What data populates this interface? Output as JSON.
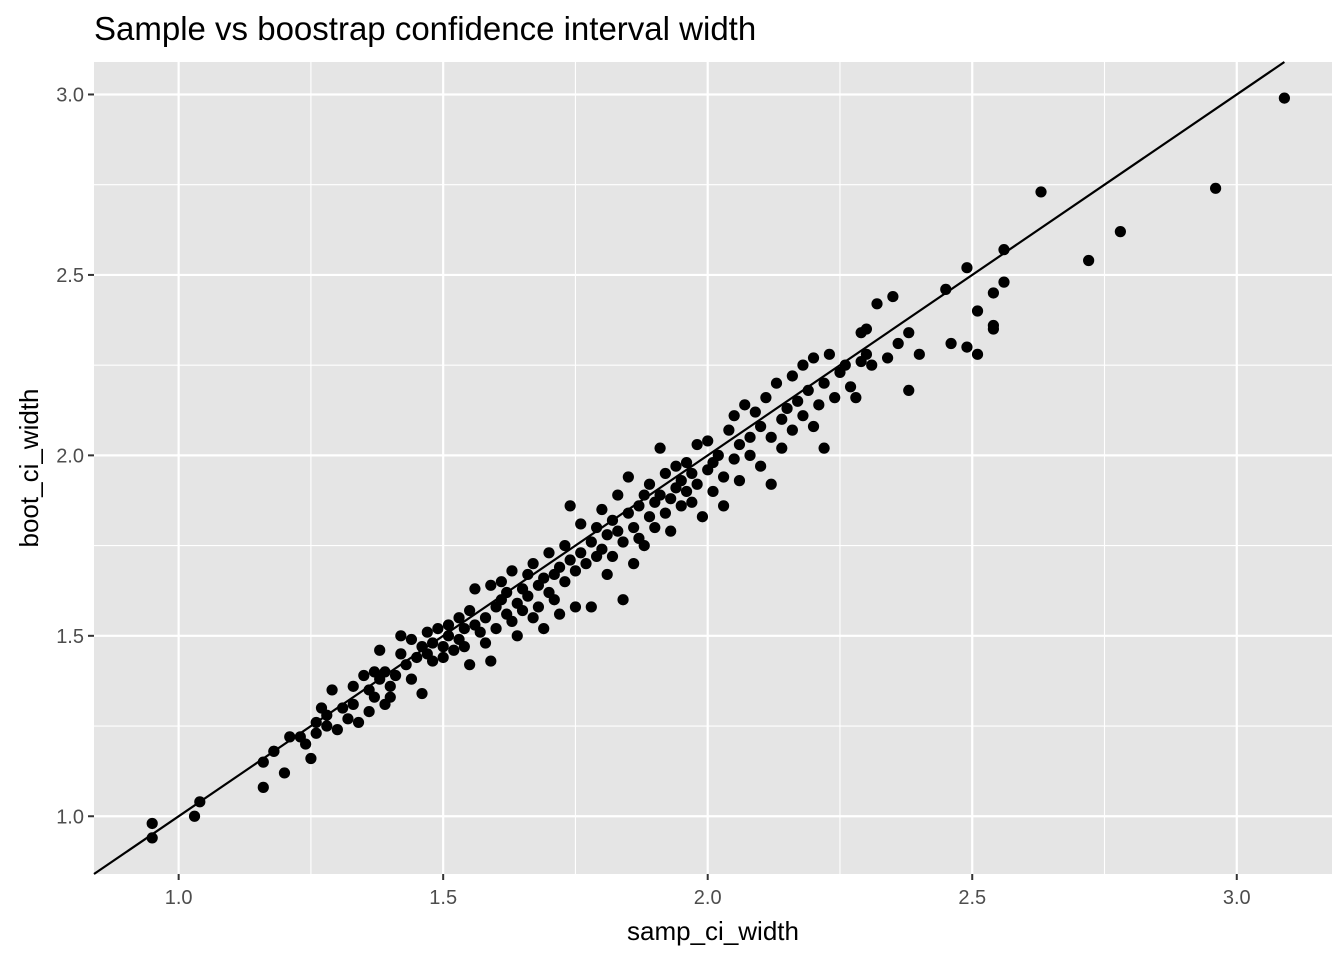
{
  "chart_data": {
    "type": "scatter",
    "title": "Sample vs boostrap confidence interval width",
    "xlabel": "samp_ci_width",
    "ylabel": "boot_ci_width",
    "xlim": [
      0.84,
      3.18
    ],
    "ylim": [
      0.84,
      3.09
    ],
    "x_ticks": [
      1.0,
      1.5,
      2.0,
      2.5,
      3.0
    ],
    "y_ticks": [
      1.0,
      1.5,
      2.0,
      2.5,
      3.0
    ],
    "x_tick_labels": [
      "1.0",
      "1.5",
      "2.0",
      "2.5",
      "3.0"
    ],
    "y_tick_labels": [
      "1.0",
      "1.5",
      "2.0",
      "2.5",
      "3.0"
    ],
    "grid": true,
    "legend": "none",
    "colors": {
      "panel": "#e5e5e5",
      "grid": "#ffffff",
      "point": "#000000",
      "line": "#000000",
      "tick": "#4d4d4d"
    },
    "reference_line": {
      "type": "identity",
      "slope": 1,
      "intercept": 0
    },
    "series": [
      {
        "points": [
          [
            0.95,
            0.98
          ],
          [
            0.95,
            0.94
          ],
          [
            1.03,
            1.0
          ],
          [
            1.04,
            1.04
          ],
          [
            1.16,
            1.15
          ],
          [
            1.16,
            1.08
          ],
          [
            1.18,
            1.18
          ],
          [
            1.18,
            1.18
          ],
          [
            1.2,
            1.12
          ],
          [
            1.21,
            1.22
          ],
          [
            1.23,
            1.22
          ],
          [
            1.24,
            1.2
          ],
          [
            1.25,
            1.16
          ],
          [
            1.26,
            1.26
          ],
          [
            1.26,
            1.23
          ],
          [
            1.27,
            1.3
          ],
          [
            1.28,
            1.28
          ],
          [
            1.28,
            1.25
          ],
          [
            1.29,
            1.35
          ],
          [
            1.3,
            1.24
          ],
          [
            1.31,
            1.3
          ],
          [
            1.32,
            1.27
          ],
          [
            1.33,
            1.36
          ],
          [
            1.33,
            1.31
          ],
          [
            1.34,
            1.26
          ],
          [
            1.35,
            1.39
          ],
          [
            1.36,
            1.35
          ],
          [
            1.36,
            1.29
          ],
          [
            1.37,
            1.4
          ],
          [
            1.37,
            1.33
          ],
          [
            1.38,
            1.38
          ],
          [
            1.38,
            1.46
          ],
          [
            1.39,
            1.4
          ],
          [
            1.39,
            1.31
          ],
          [
            1.4,
            1.36
          ],
          [
            1.4,
            1.33
          ],
          [
            1.41,
            1.39
          ],
          [
            1.42,
            1.45
          ],
          [
            1.42,
            1.5
          ],
          [
            1.43,
            1.42
          ],
          [
            1.44,
            1.49
          ],
          [
            1.44,
            1.38
          ],
          [
            1.45,
            1.44
          ],
          [
            1.46,
            1.47
          ],
          [
            1.46,
            1.34
          ],
          [
            1.47,
            1.51
          ],
          [
            1.47,
            1.45
          ],
          [
            1.48,
            1.48
          ],
          [
            1.48,
            1.43
          ],
          [
            1.49,
            1.52
          ],
          [
            1.5,
            1.47
          ],
          [
            1.5,
            1.44
          ],
          [
            1.51,
            1.5
          ],
          [
            1.51,
            1.53
          ],
          [
            1.52,
            1.46
          ],
          [
            1.53,
            1.49
          ],
          [
            1.53,
            1.55
          ],
          [
            1.54,
            1.52
          ],
          [
            1.54,
            1.47
          ],
          [
            1.55,
            1.57
          ],
          [
            1.55,
            1.42
          ],
          [
            1.56,
            1.53
          ],
          [
            1.56,
            1.63
          ],
          [
            1.57,
            1.51
          ],
          [
            1.58,
            1.55
          ],
          [
            1.58,
            1.48
          ],
          [
            1.59,
            1.64
          ],
          [
            1.59,
            1.43
          ],
          [
            1.6,
            1.58
          ],
          [
            1.6,
            1.52
          ],
          [
            1.61,
            1.6
          ],
          [
            1.61,
            1.65
          ],
          [
            1.62,
            1.56
          ],
          [
            1.62,
            1.62
          ],
          [
            1.63,
            1.54
          ],
          [
            1.63,
            1.68
          ],
          [
            1.64,
            1.59
          ],
          [
            1.64,
            1.5
          ],
          [
            1.65,
            1.63
          ],
          [
            1.65,
            1.57
          ],
          [
            1.66,
            1.61
          ],
          [
            1.66,
            1.67
          ],
          [
            1.67,
            1.55
          ],
          [
            1.67,
            1.7
          ],
          [
            1.68,
            1.64
          ],
          [
            1.68,
            1.58
          ],
          [
            1.69,
            1.66
          ],
          [
            1.69,
            1.52
          ],
          [
            1.7,
            1.62
          ],
          [
            1.7,
            1.73
          ],
          [
            1.71,
            1.67
          ],
          [
            1.71,
            1.6
          ],
          [
            1.72,
            1.69
          ],
          [
            1.72,
            1.56
          ],
          [
            1.73,
            1.75
          ],
          [
            1.73,
            1.65
          ],
          [
            1.74,
            1.71
          ],
          [
            1.74,
            1.86
          ],
          [
            1.75,
            1.68
          ],
          [
            1.75,
            1.58
          ],
          [
            1.76,
            1.73
          ],
          [
            1.76,
            1.81
          ],
          [
            1.77,
            1.7
          ],
          [
            1.78,
            1.76
          ],
          [
            1.78,
            1.58
          ],
          [
            1.79,
            1.72
          ],
          [
            1.79,
            1.8
          ],
          [
            1.8,
            1.74
          ],
          [
            1.8,
            1.85
          ],
          [
            1.81,
            1.78
          ],
          [
            1.81,
            1.67
          ],
          [
            1.82,
            1.82
          ],
          [
            1.82,
            1.72
          ],
          [
            1.83,
            1.79
          ],
          [
            1.83,
            1.89
          ],
          [
            1.84,
            1.6
          ],
          [
            1.84,
            1.76
          ],
          [
            1.85,
            1.84
          ],
          [
            1.85,
            1.94
          ],
          [
            1.86,
            1.8
          ],
          [
            1.86,
            1.7
          ],
          [
            1.87,
            1.86
          ],
          [
            1.87,
            1.77
          ],
          [
            1.88,
            1.89
          ],
          [
            1.88,
            1.75
          ],
          [
            1.89,
            1.83
          ],
          [
            1.89,
            1.92
          ],
          [
            1.9,
            1.87
          ],
          [
            1.9,
            1.8
          ],
          [
            1.91,
            1.89
          ],
          [
            1.91,
            2.02
          ],
          [
            1.92,
            1.84
          ],
          [
            1.92,
            1.95
          ],
          [
            1.93,
            1.88
          ],
          [
            1.93,
            1.79
          ],
          [
            1.94,
            1.91
          ],
          [
            1.94,
            1.97
          ],
          [
            1.95,
            1.86
          ],
          [
            1.95,
            1.93
          ],
          [
            1.96,
            1.9
          ],
          [
            1.96,
            1.98
          ],
          [
            1.97,
            1.87
          ],
          [
            1.97,
            1.95
          ],
          [
            1.98,
            2.03
          ],
          [
            1.98,
            1.92
          ],
          [
            1.99,
            1.83
          ],
          [
            2.0,
            1.96
          ],
          [
            2.0,
            2.04
          ],
          [
            2.01,
            1.98
          ],
          [
            2.01,
            1.9
          ],
          [
            2.02,
            2.0
          ],
          [
            2.03,
            1.94
          ],
          [
            2.03,
            1.86
          ],
          [
            2.04,
            2.07
          ],
          [
            2.05,
            1.99
          ],
          [
            2.05,
            2.11
          ],
          [
            2.06,
            2.03
          ],
          [
            2.06,
            1.93
          ],
          [
            2.07,
            2.14
          ],
          [
            2.08,
            2.0
          ],
          [
            2.08,
            2.05
          ],
          [
            2.09,
            2.12
          ],
          [
            2.1,
            2.08
          ],
          [
            2.1,
            1.97
          ],
          [
            2.11,
            2.16
          ],
          [
            2.12,
            2.05
          ],
          [
            2.12,
            1.92
          ],
          [
            2.13,
            2.2
          ],
          [
            2.14,
            2.1
          ],
          [
            2.14,
            2.02
          ],
          [
            2.15,
            2.13
          ],
          [
            2.16,
            2.22
          ],
          [
            2.16,
            2.07
          ],
          [
            2.17,
            2.15
          ],
          [
            2.18,
            2.25
          ],
          [
            2.18,
            2.11
          ],
          [
            2.19,
            2.18
          ],
          [
            2.2,
            2.08
          ],
          [
            2.2,
            2.27
          ],
          [
            2.21,
            2.14
          ],
          [
            2.22,
            2.2
          ],
          [
            2.22,
            2.02
          ],
          [
            2.23,
            2.28
          ],
          [
            2.24,
            2.16
          ],
          [
            2.25,
            2.23
          ],
          [
            2.26,
            2.25
          ],
          [
            2.27,
            2.19
          ],
          [
            2.28,
            2.16
          ],
          [
            2.29,
            2.34
          ],
          [
            2.29,
            2.26
          ],
          [
            2.3,
            2.35
          ],
          [
            2.3,
            2.28
          ],
          [
            2.31,
            2.25
          ],
          [
            2.32,
            2.42
          ],
          [
            2.34,
            2.27
          ],
          [
            2.35,
            2.44
          ],
          [
            2.36,
            2.31
          ],
          [
            2.38,
            2.34
          ],
          [
            2.38,
            2.18
          ],
          [
            2.4,
            2.28
          ],
          [
            2.45,
            2.46
          ],
          [
            2.46,
            2.31
          ],
          [
            2.49,
            2.52
          ],
          [
            2.49,
            2.3
          ],
          [
            2.51,
            2.4
          ],
          [
            2.51,
            2.28
          ],
          [
            2.54,
            2.45
          ],
          [
            2.54,
            2.36
          ],
          [
            2.54,
            2.35
          ],
          [
            2.56,
            2.57
          ],
          [
            2.56,
            2.48
          ],
          [
            2.63,
            2.73
          ],
          [
            2.72,
            2.54
          ],
          [
            2.78,
            2.62
          ],
          [
            2.96,
            2.74
          ],
          [
            3.09,
            2.99
          ]
        ]
      }
    ]
  }
}
